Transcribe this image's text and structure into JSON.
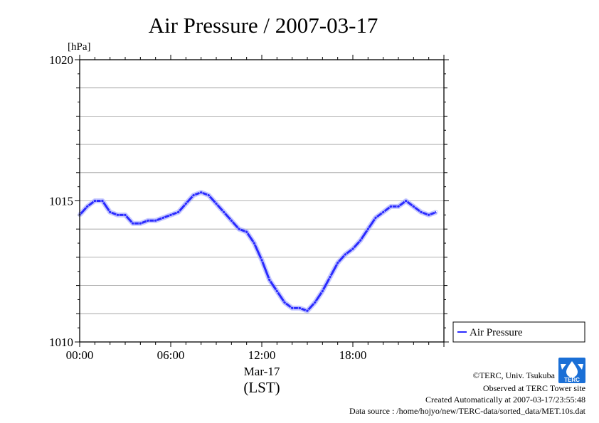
{
  "chart_data": {
    "type": "line",
    "title": "Air Pressure / 2007-03-17",
    "ylabel": "[hPa]",
    "xlabel": "(LST)",
    "x_date_label": "Mar-17",
    "ylim": [
      1010,
      1020
    ],
    "xlim": [
      "00:00",
      "24:00"
    ],
    "x_ticks": [
      "00:00",
      "06:00",
      "12:00",
      "18:00"
    ],
    "y_ticks": [
      1010,
      1015,
      1020
    ],
    "grid": true,
    "legend": "right",
    "series": [
      {
        "name": "Air Pressure",
        "color": "#2a2aff",
        "x": [
          "00:00",
          "00:30",
          "01:00",
          "01:30",
          "02:00",
          "02:30",
          "03:00",
          "03:30",
          "04:00",
          "04:30",
          "05:00",
          "05:30",
          "06:00",
          "06:30",
          "07:00",
          "07:30",
          "08:00",
          "08:30",
          "09:00",
          "09:30",
          "10:00",
          "10:30",
          "11:00",
          "11:30",
          "12:00",
          "12:30",
          "13:00",
          "13:30",
          "14:00",
          "14:30",
          "15:00",
          "15:30",
          "16:00",
          "16:30",
          "17:00",
          "17:30",
          "18:00",
          "18:30",
          "19:00",
          "19:30",
          "20:00",
          "20:30",
          "21:00",
          "21:30",
          "22:00",
          "22:30",
          "23:00",
          "23:30"
        ],
        "values": [
          1014.5,
          1014.8,
          1015.0,
          1015.0,
          1014.6,
          1014.5,
          1014.5,
          1014.2,
          1014.2,
          1014.3,
          1014.3,
          1014.4,
          1014.5,
          1014.6,
          1014.9,
          1015.2,
          1015.3,
          1015.2,
          1014.9,
          1014.6,
          1014.3,
          1014.0,
          1013.9,
          1013.5,
          1012.9,
          1012.2,
          1011.8,
          1011.4,
          1011.2,
          1011.2,
          1011.1,
          1011.4,
          1011.8,
          1012.3,
          1012.8,
          1013.1,
          1013.3,
          1013.6,
          1014.0,
          1014.4,
          1014.6,
          1014.8,
          1014.8,
          1015.0,
          1014.8,
          1014.6,
          1014.5,
          1014.6
        ]
      }
    ]
  },
  "footer": {
    "copyright": "©TERC, Univ. Tsukuba",
    "observed": "Observed at TERC Tower site",
    "created": "Created Automatically at 2007-03-17/23:55:48",
    "source": "Data source : /home/hojyo/new/TERC-data/sorted_data/MET.10s.dat"
  },
  "logo": {
    "text": "TERC",
    "color": "#1a6fd6"
  }
}
